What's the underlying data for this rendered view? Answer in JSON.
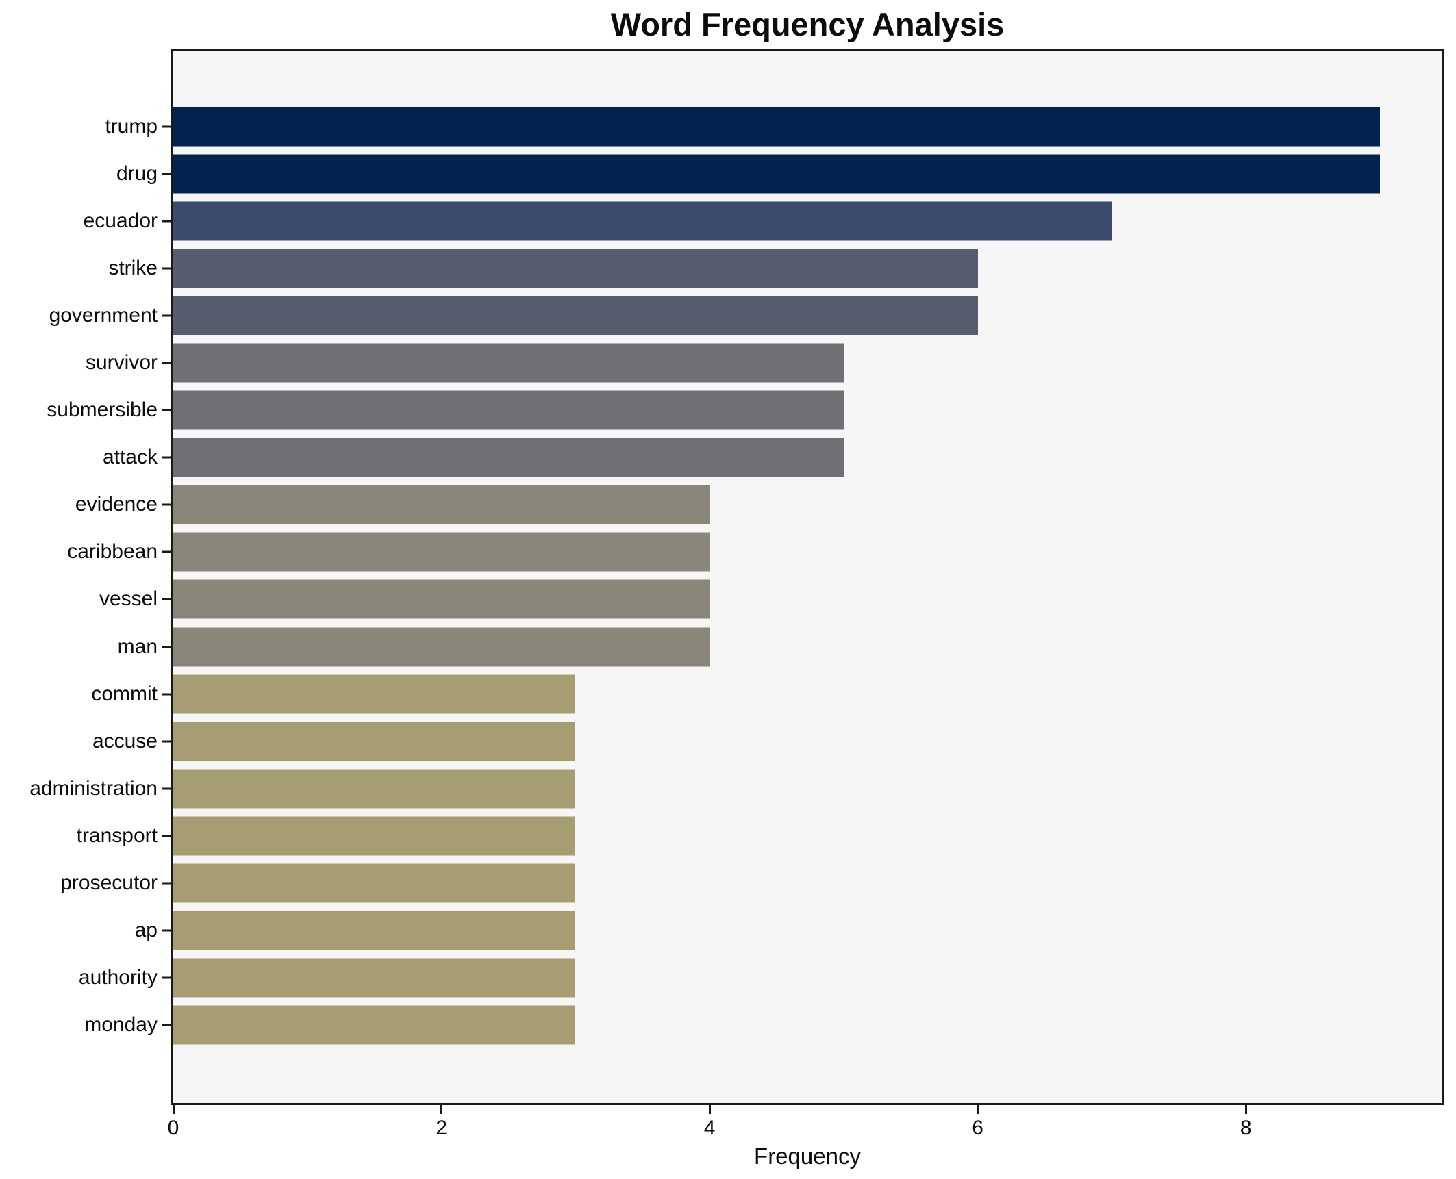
{
  "chart_data": {
    "type": "bar",
    "orientation": "horizontal",
    "title": "Word Frequency Analysis",
    "xlabel": "Frequency",
    "ylabel": "",
    "categories": [
      "trump",
      "drug",
      "ecuador",
      "strike",
      "government",
      "survivor",
      "submersible",
      "attack",
      "evidence",
      "caribbean",
      "vessel",
      "man",
      "commit",
      "accuse",
      "administration",
      "transport",
      "prosecutor",
      "ap",
      "authority",
      "monday"
    ],
    "values": [
      9,
      9,
      7,
      6,
      6,
      5,
      5,
      5,
      4,
      4,
      4,
      4,
      3,
      3,
      3,
      3,
      3,
      3,
      3,
      3
    ],
    "bar_colors": [
      "#02234e",
      "#02234e",
      "#3d4b6e",
      "#575d6e",
      "#575d6e",
      "#6e7073",
      "#6e7073",
      "#6e7073",
      "#8a877a",
      "#8a877a",
      "#8a877a",
      "#8a877a",
      "#a69d72",
      "#a69d72",
      "#a69d72",
      "#a69d72",
      "#a69d72",
      "#a69d72",
      "#a69d72",
      "#a69d72"
    ],
    "xlim": [
      0,
      9.46
    ],
    "x_ticks": [
      0,
      2,
      4,
      6,
      8
    ],
    "grid": false,
    "legend": false,
    "plot_background": "#f6f6f7",
    "figure_background": "#ffffff",
    "spine_color": "#1a1a1a",
    "text_color": "#0c0c0c"
  }
}
